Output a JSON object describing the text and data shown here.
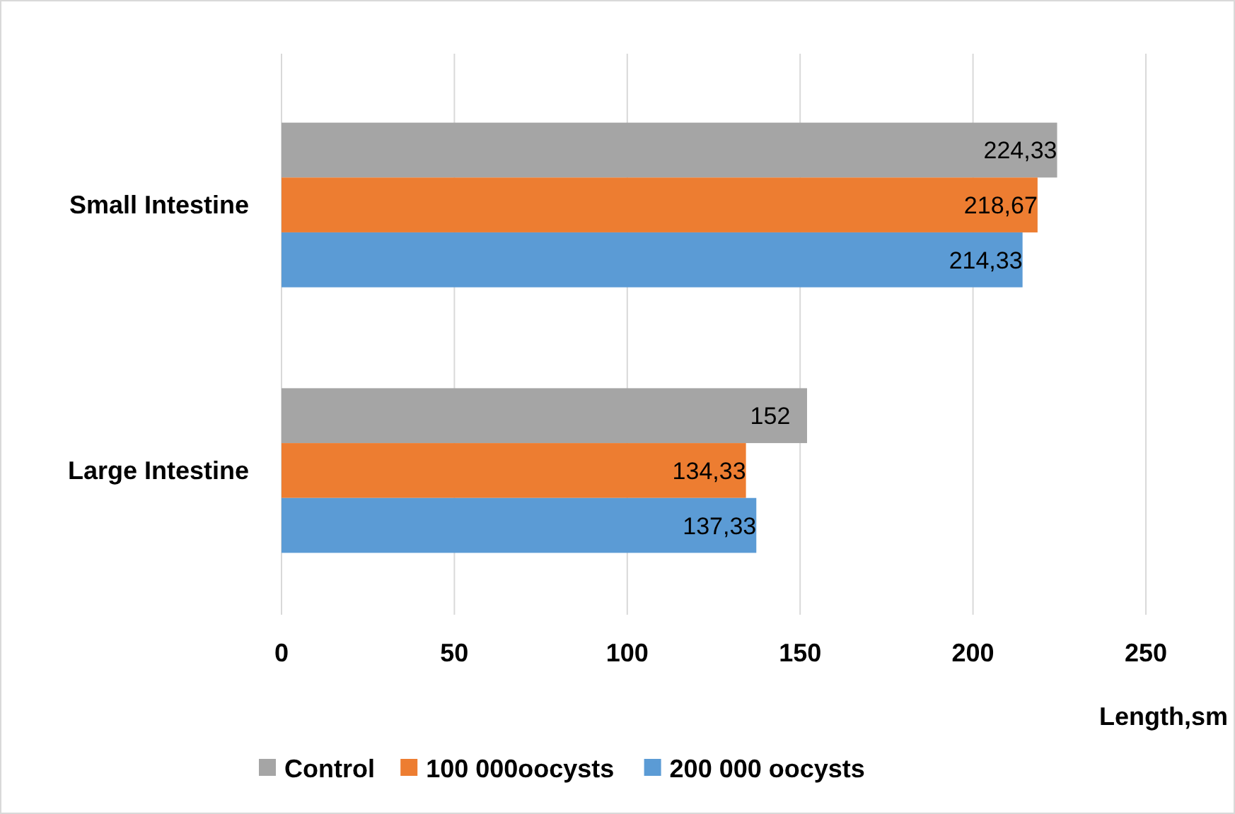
{
  "chart_data": {
    "type": "bar",
    "orientation": "horizontal",
    "xlabel": "Length,sm",
    "categories": [
      "Small Intestine",
      "Large Intestine"
    ],
    "series": [
      {
        "name": "Control",
        "color": "#a5a5a5",
        "values": [
          224.33,
          152
        ],
        "value_labels": [
          "224,33",
          "152"
        ]
      },
      {
        "name": "100 000oocysts",
        "color": "#ed7d31",
        "values": [
          218.67,
          134.33
        ],
        "value_labels": [
          "218,67",
          "134,33"
        ]
      },
      {
        "name": "200 000 oocysts",
        "color": "#5b9bd5",
        "values": [
          214.33,
          137.33
        ],
        "value_labels": [
          "214,33",
          "137,33"
        ]
      }
    ],
    "xlim": [
      0,
      250
    ],
    "xticks": [
      0,
      50,
      100,
      150,
      200,
      250
    ],
    "grid": "x",
    "legend": "bottom"
  }
}
